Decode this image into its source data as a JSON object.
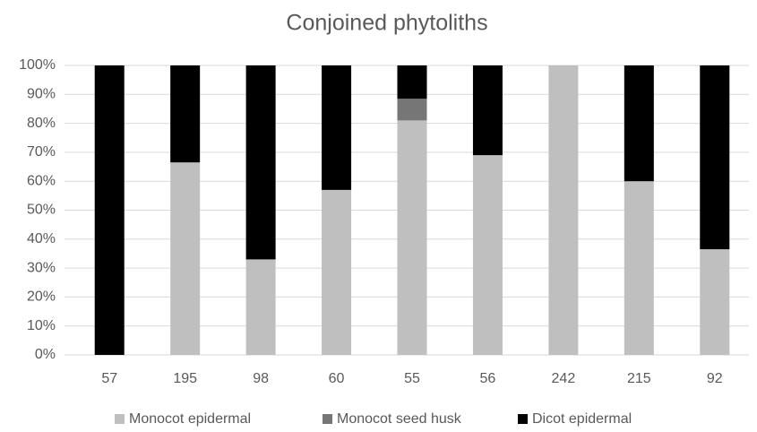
{
  "chart_data": {
    "type": "bar",
    "stacked": true,
    "title": "Conjoined phytoliths",
    "categories": [
      "57",
      "195",
      "98",
      "60",
      "55",
      "56",
      "242",
      "215",
      "92"
    ],
    "series": [
      {
        "name": "Monocot epidermal",
        "color": "#bfbfbf",
        "values": [
          0,
          66.5,
          33,
          57,
          81,
          69,
          100,
          60,
          36.5
        ]
      },
      {
        "name": "Monocot seed husk",
        "color": "#767676",
        "values": [
          0,
          0,
          0,
          0,
          7.5,
          0,
          0,
          0,
          0
        ]
      },
      {
        "name": "Dicot epidermal",
        "color": "#000000",
        "values": [
          100,
          33.5,
          67,
          43,
          11.5,
          31,
          0,
          40,
          63.5
        ]
      }
    ],
    "ylim": [
      0,
      100
    ],
    "yticks": [
      {
        "value": 0,
        "label": "0%"
      },
      {
        "value": 10,
        "label": "10%"
      },
      {
        "value": 20,
        "label": "20%"
      },
      {
        "value": 30,
        "label": "30%"
      },
      {
        "value": 40,
        "label": "40%"
      },
      {
        "value": 50,
        "label": "50%"
      },
      {
        "value": 60,
        "label": "60%"
      },
      {
        "value": 70,
        "label": "70%"
      },
      {
        "value": 80,
        "label": "80%"
      },
      {
        "value": 90,
        "label": "90%"
      },
      {
        "value": 100,
        "label": "100%"
      }
    ],
    "grid": true,
    "legend": "bottom"
  }
}
